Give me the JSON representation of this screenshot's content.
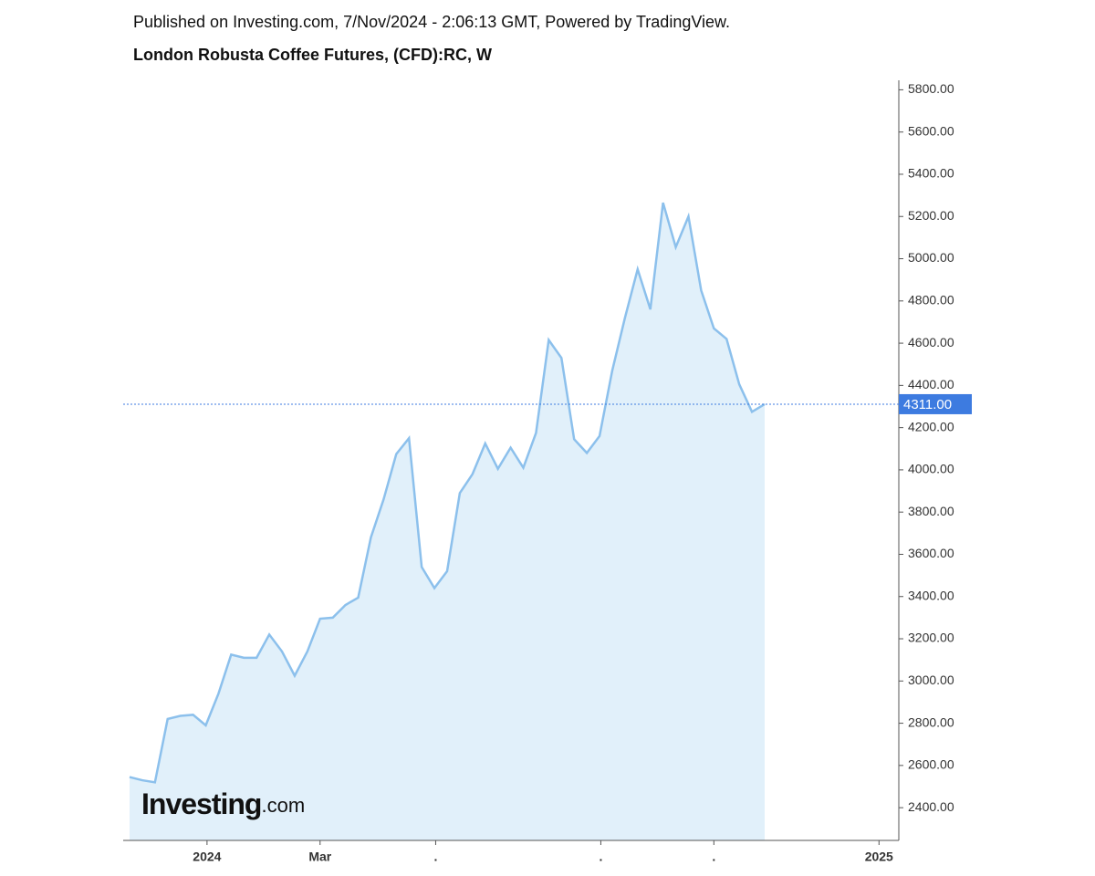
{
  "header": "Published on Investing.com, 7/Nov/2024 - 2:06:13 GMT, Powered by TradingView.",
  "logo": [
    "Investing",
    ".com"
  ],
  "chart_data": {
    "type": "area",
    "title": "London Robusta Coffee Futures, (CFD):RC, W",
    "color": "#8cc0ec",
    "fill": "#e1f0fa",
    "x": [
      0,
      1,
      2,
      3,
      4,
      5,
      6,
      7,
      8,
      9,
      10,
      11,
      12,
      13,
      14,
      15,
      16,
      17,
      18,
      19,
      20,
      21,
      22,
      23,
      24,
      25,
      26,
      27,
      28,
      29,
      30,
      31,
      32,
      33,
      34,
      35,
      36,
      37,
      38,
      39,
      40,
      41,
      42,
      43,
      44,
      45,
      46,
      47,
      48,
      49,
      50
    ],
    "values": [
      2545,
      2530,
      2520,
      2820,
      2835,
      2840,
      2790,
      2940,
      3125,
      3110,
      3110,
      3220,
      3140,
      3025,
      3140,
      3295,
      3300,
      3360,
      3395,
      3680,
      3860,
      4075,
      4150,
      3540,
      3440,
      3520,
      3890,
      3980,
      4125,
      4005,
      4105,
      4010,
      4175,
      4615,
      4530,
      4145,
      4080,
      4160,
      4470,
      4720,
      4950,
      4760,
      5265,
      5055,
      5200,
      4850,
      4670,
      4620,
      4405,
      4275,
      4311
    ],
    "xlim": [
      -0.5,
      60.56
    ],
    "xticks": [
      {
        "value": 6.1,
        "label": "2024"
      },
      {
        "value": 15.0,
        "label": "Mar"
      },
      {
        "value": 24.1,
        "label": "."
      },
      {
        "value": 37.1,
        "label": "."
      },
      {
        "value": 46.0,
        "label": "."
      },
      {
        "value": 59.0,
        "label": "2025"
      }
    ],
    "ylim": [
      2245,
      5845
    ],
    "yticks": [
      {
        "value": 2400,
        "label": "2400.00"
      },
      {
        "value": 2600,
        "label": "2600.00"
      },
      {
        "value": 2800,
        "label": "2800.00"
      },
      {
        "value": 3000,
        "label": "3000.00"
      },
      {
        "value": 3200,
        "label": "3200.00"
      },
      {
        "value": 3400,
        "label": "3400.00"
      },
      {
        "value": 3600,
        "label": "3600.00"
      },
      {
        "value": 3800,
        "label": "3800.00"
      },
      {
        "value": 4000,
        "label": "4000.00"
      },
      {
        "value": 4200,
        "label": "4200.00"
      },
      {
        "value": 4400,
        "label": "4400.00"
      },
      {
        "value": 4600,
        "label": "4600.00"
      },
      {
        "value": 4800,
        "label": "4800.00"
      },
      {
        "value": 5000,
        "label": "5000.00"
      },
      {
        "value": 5200,
        "label": "5200.00"
      },
      {
        "value": 5400,
        "label": "5400.00"
      },
      {
        "value": 5600,
        "label": "5600.00"
      },
      {
        "value": 5800,
        "label": "5800.00"
      }
    ],
    "price_label": {
      "value": 4311,
      "label": "4311.00"
    },
    "price_color": "#3d7be0"
  }
}
